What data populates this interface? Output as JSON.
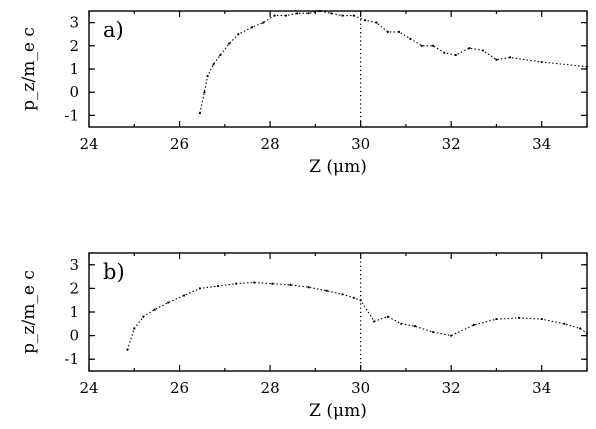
{
  "chart_data": [
    {
      "type": "line",
      "panel_label": "a)",
      "xlabel": "Z (μm)",
      "ylabel": "p_z/m_e c",
      "xlim": [
        24,
        35
      ],
      "ylim": [
        -1.5,
        3.5
      ],
      "xticks": [
        24,
        26,
        28,
        30,
        32,
        34
      ],
      "yticks": [
        -1,
        0,
        1,
        2,
        3
      ],
      "vline_x": 30,
      "series": [
        {
          "style": "dotted trajectory",
          "x": [
            26.45,
            26.55,
            26.62,
            26.75,
            26.9,
            27.1,
            27.3,
            27.6,
            27.85,
            28.1,
            28.35,
            28.6,
            28.85,
            29.1,
            29.35,
            29.6,
            29.85,
            30.1,
            30.35,
            30.6,
            30.85,
            31.1,
            31.35,
            31.6,
            31.85,
            32.1,
            32.4,
            32.7,
            33.0,
            33.3,
            34.0,
            35.0
          ],
          "y": [
            -0.9,
            0.0,
            0.7,
            1.2,
            1.6,
            2.1,
            2.5,
            2.8,
            3.0,
            3.3,
            3.3,
            3.4,
            3.4,
            3.5,
            3.4,
            3.3,
            3.3,
            3.1,
            3.0,
            2.6,
            2.6,
            2.3,
            2.0,
            2.0,
            1.7,
            1.6,
            1.9,
            1.8,
            1.4,
            1.5,
            1.3,
            1.1
          ]
        }
      ]
    },
    {
      "type": "line",
      "panel_label": "b)",
      "xlabel": "Z (μm)",
      "ylabel": "p_z/m_e c",
      "xlim": [
        24,
        35
      ],
      "ylim": [
        -1.5,
        3.5
      ],
      "xticks": [
        24,
        26,
        28,
        30,
        32,
        34
      ],
      "yticks": [
        -1,
        0,
        1,
        2,
        3
      ],
      "vline_x": 30,
      "series": [
        {
          "style": "dotted trajectory",
          "x": [
            24.85,
            25.0,
            25.2,
            25.45,
            25.75,
            26.1,
            26.45,
            26.85,
            27.25,
            27.65,
            28.05,
            28.45,
            28.85,
            29.25,
            29.6,
            29.85,
            30.0,
            30.3,
            30.6,
            30.9,
            31.2,
            31.6,
            32.0,
            32.5,
            33.0,
            33.5,
            34.0,
            34.5,
            34.85,
            35.0
          ],
          "y": [
            -0.6,
            0.3,
            0.8,
            1.1,
            1.4,
            1.7,
            2.0,
            2.1,
            2.2,
            2.25,
            2.2,
            2.15,
            2.05,
            1.9,
            1.75,
            1.6,
            1.5,
            0.6,
            0.8,
            0.5,
            0.4,
            0.15,
            0.0,
            0.45,
            0.7,
            0.75,
            0.7,
            0.5,
            0.3,
            0.1
          ]
        }
      ]
    }
  ]
}
